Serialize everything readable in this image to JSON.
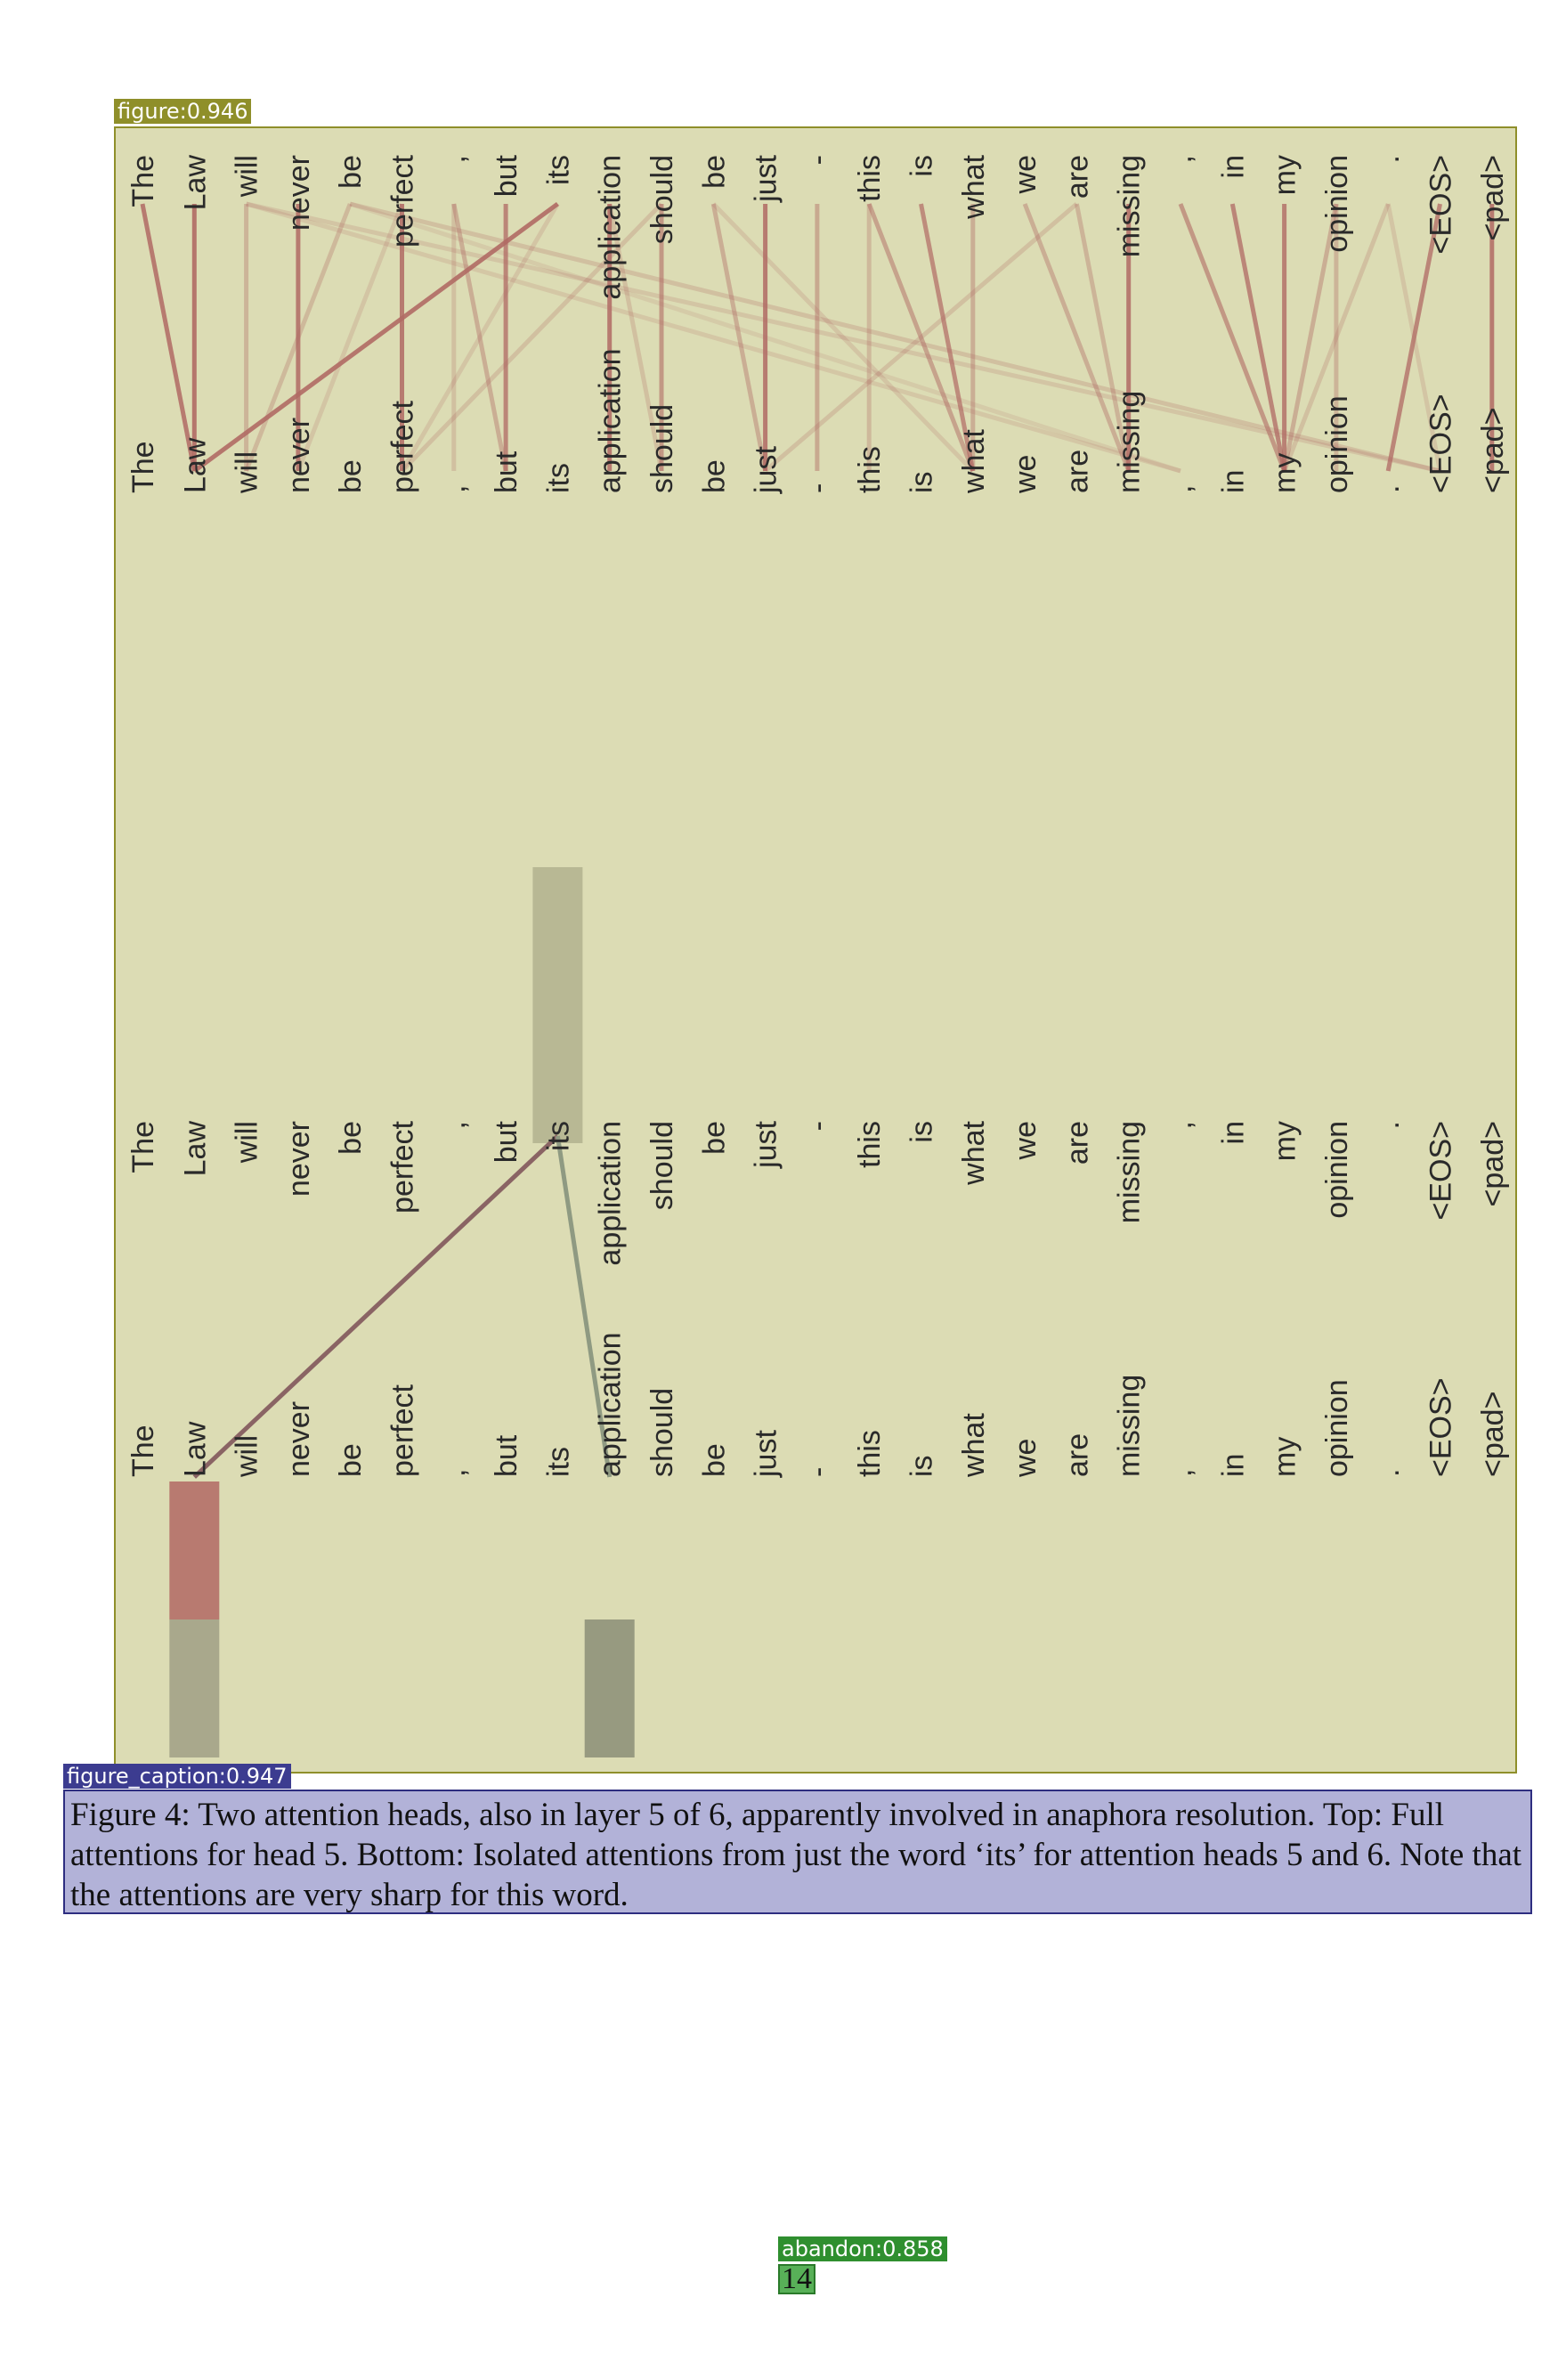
{
  "detections": {
    "figure": {
      "label": "figure:0.946",
      "color": "#8f8f2a"
    },
    "caption": {
      "label": "figure_caption:0.947",
      "color": "#3c3c90"
    },
    "page_number": {
      "label": "abandon:0.858",
      "color": "#2f8f2f"
    }
  },
  "tokens": [
    "The",
    "Law",
    "will",
    "never",
    "be",
    "perfect",
    ",",
    "but",
    "its",
    "application",
    "should",
    "be",
    "just",
    "-",
    "this",
    "is",
    "what",
    "we",
    "are",
    "missing",
    ",",
    "in",
    "my",
    "opinion",
    ".",
    "<EOS>",
    "<pad>"
  ],
  "top_panel": {
    "description_hidden": false,
    "links": [
      [
        0,
        1,
        0.85
      ],
      [
        1,
        1,
        0.9
      ],
      [
        2,
        2,
        0.35
      ],
      [
        2,
        20,
        0.18
      ],
      [
        2,
        25,
        0.2
      ],
      [
        3,
        3,
        0.85
      ],
      [
        4,
        2,
        0.3
      ],
      [
        4,
        25,
        0.25
      ],
      [
        4,
        20,
        0.15
      ],
      [
        5,
        5,
        0.85
      ],
      [
        5,
        3,
        0.2
      ],
      [
        6,
        6,
        0.25
      ],
      [
        6,
        7,
        0.4
      ],
      [
        7,
        7,
        0.75
      ],
      [
        8,
        1,
        0.9
      ],
      [
        8,
        5,
        0.2
      ],
      [
        9,
        9,
        0.85
      ],
      [
        9,
        10,
        0.25
      ],
      [
        10,
        10,
        0.6
      ],
      [
        10,
        5,
        0.25
      ],
      [
        11,
        12,
        0.4
      ],
      [
        11,
        16,
        0.2
      ],
      [
        12,
        12,
        0.85
      ],
      [
        13,
        13,
        0.45
      ],
      [
        14,
        16,
        0.5
      ],
      [
        14,
        14,
        0.3
      ],
      [
        15,
        16,
        0.7
      ],
      [
        16,
        16,
        0.4
      ],
      [
        17,
        19,
        0.4
      ],
      [
        18,
        19,
        0.35
      ],
      [
        18,
        12,
        0.25
      ],
      [
        19,
        19,
        0.85
      ],
      [
        20,
        22,
        0.6
      ],
      [
        21,
        22,
        0.75
      ],
      [
        22,
        22,
        0.8
      ],
      [
        23,
        22,
        0.4
      ],
      [
        23,
        23,
        0.35
      ],
      [
        24,
        22,
        0.25
      ],
      [
        24,
        25,
        0.2
      ],
      [
        25,
        24,
        0.75
      ],
      [
        26,
        26,
        0.85
      ]
    ]
  },
  "bottom_panel": {
    "head5": {
      "from": 8,
      "to": 1,
      "color": "#8a6464"
    },
    "head6": {
      "from": 8,
      "to": 9,
      "color": "#8f9a82"
    }
  },
  "caption": "Figure 4: Two attention heads, also in layer 5 of 6, apparently involved in anaphora resolution. Top: Full attentions for head 5. Bottom: Isolated attentions from just the word ‘its’ for attention heads 5 and 6. Note that the attentions are very sharp for this word.",
  "page_number": "14"
}
